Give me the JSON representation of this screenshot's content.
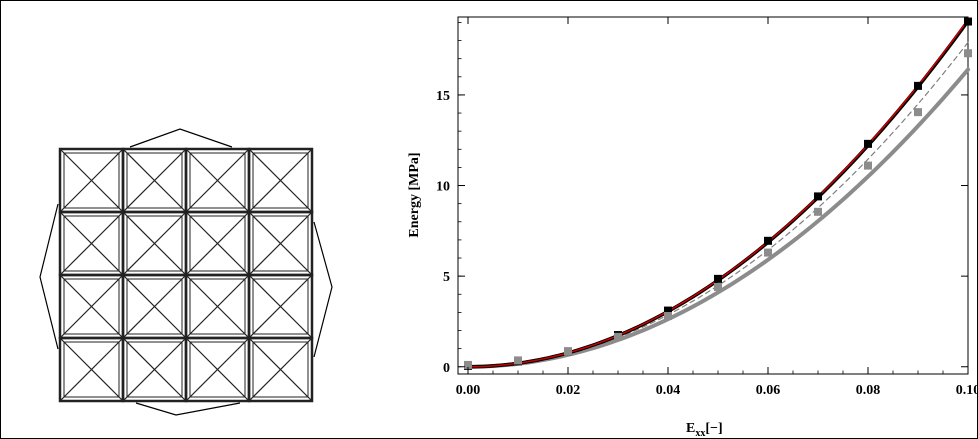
{
  "chart_data": {
    "type": "line",
    "xlabel": "E",
    "xlabel_sub": "xx",
    "xlabel_suffix": "[−]",
    "ylabel": "Energy [MPa]",
    "xlim": [
      -0.002,
      0.1
    ],
    "ylim": [
      -0.4,
      19.3
    ],
    "x_ticks": [
      0.0,
      0.02,
      0.04,
      0.06,
      0.08,
      0.1
    ],
    "x_tick_labels": [
      "0.00",
      "0.02",
      "0.04",
      "0.06",
      "0.08",
      "0.10"
    ],
    "y_ticks": [
      0,
      5,
      10,
      15
    ],
    "y_tick_labels": [
      "0",
      "5",
      "10",
      "15"
    ],
    "grid": false,
    "series": [
      {
        "style": "thick-black-line",
        "color": "#000000",
        "coef": 1908,
        "markers": false
      },
      {
        "style": "thin-red-line",
        "color": "#cc0000",
        "coef": 1915,
        "markers": false
      },
      {
        "style": "thick-gray-line",
        "color": "#8c8c8c",
        "coef": 1640,
        "markers": false
      },
      {
        "style": "dashed-gray-line",
        "color": "#808080",
        "coef": 1790,
        "markers": false
      },
      {
        "style": "black-square-markers",
        "color": "#000000",
        "x": [
          0.0,
          0.01,
          0.02,
          0.03,
          0.04,
          0.05,
          0.06,
          0.07,
          0.08,
          0.09,
          0.1
        ],
        "y": [
          0.05,
          0.3,
          0.85,
          1.75,
          3.1,
          4.85,
          6.95,
          9.4,
          12.3,
          15.5,
          19.05
        ]
      },
      {
        "style": "gray-square-markers",
        "color": "#8c8c8c",
        "x": [
          0.0,
          0.01,
          0.02,
          0.03,
          0.04,
          0.05,
          0.06,
          0.07,
          0.08,
          0.09,
          0.1
        ],
        "y": [
          0.1,
          0.35,
          0.85,
          1.65,
          2.8,
          4.4,
          6.3,
          8.55,
          11.1,
          14.05,
          17.3
        ]
      }
    ]
  },
  "lattice": {
    "cells": 4,
    "stroke_color": "#222222",
    "arrow_color": "#000000"
  }
}
